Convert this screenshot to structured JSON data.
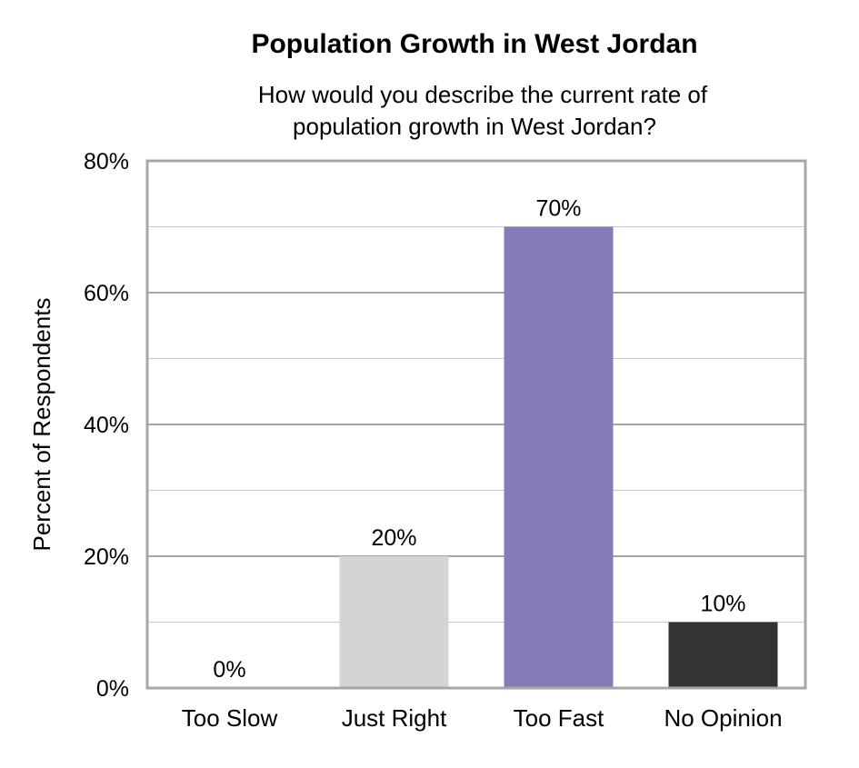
{
  "chart_data": {
    "type": "bar",
    "title": "Population Growth in West Jordan",
    "subtitle_lines": [
      "How would you describe the current rate of",
      "population growth in West Jordan?"
    ],
    "xlabel": "",
    "ylabel": "Percent of Respondents",
    "ylim": [
      0,
      80
    ],
    "yticks": [
      0,
      20,
      40,
      60,
      80
    ],
    "ytick_labels": [
      "0%",
      "20%",
      "40%",
      "60%",
      "80%"
    ],
    "grid": true,
    "categories": [
      "Too Slow",
      "Just Right",
      "Too Fast",
      "No Opinion"
    ],
    "values": [
      0,
      20,
      70,
      10
    ],
    "data_labels": [
      "0%",
      "20%",
      "70%",
      "10%"
    ],
    "colors": [
      "#ffffff",
      "#d4d4d4",
      "#877bb7",
      "#333333"
    ],
    "legend": "none"
  }
}
